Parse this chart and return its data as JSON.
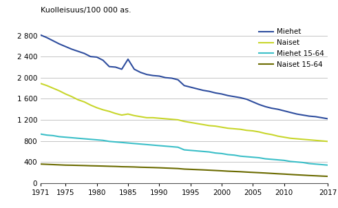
{
  "title": "Kuolleisuus/100 000 as.",
  "ylim": [
    0,
    3000
  ],
  "yticks": [
    0,
    400,
    800,
    1200,
    1600,
    2000,
    2400,
    2800
  ],
  "xticks": [
    1971,
    1975,
    1980,
    1985,
    1990,
    1995,
    2000,
    2005,
    2010,
    2017
  ],
  "series": {
    "Miehet": {
      "color": "#2e4d9e",
      "linewidth": 1.5,
      "data": [
        [
          1971,
          2810
        ],
        [
          1972,
          2760
        ],
        [
          1973,
          2700
        ],
        [
          1974,
          2640
        ],
        [
          1975,
          2590
        ],
        [
          1976,
          2540
        ],
        [
          1977,
          2500
        ],
        [
          1978,
          2460
        ],
        [
          1979,
          2400
        ],
        [
          1980,
          2390
        ],
        [
          1981,
          2330
        ],
        [
          1982,
          2210
        ],
        [
          1983,
          2200
        ],
        [
          1984,
          2160
        ],
        [
          1985,
          2350
        ],
        [
          1986,
          2160
        ],
        [
          1987,
          2100
        ],
        [
          1988,
          2060
        ],
        [
          1989,
          2040
        ],
        [
          1990,
          2030
        ],
        [
          1991,
          2000
        ],
        [
          1992,
          1990
        ],
        [
          1993,
          1960
        ],
        [
          1994,
          1850
        ],
        [
          1995,
          1820
        ],
        [
          1996,
          1790
        ],
        [
          1997,
          1760
        ],
        [
          1998,
          1740
        ],
        [
          1999,
          1710
        ],
        [
          2000,
          1690
        ],
        [
          2001,
          1660
        ],
        [
          2002,
          1640
        ],
        [
          2003,
          1620
        ],
        [
          2004,
          1590
        ],
        [
          2005,
          1540
        ],
        [
          2006,
          1490
        ],
        [
          2007,
          1450
        ],
        [
          2008,
          1420
        ],
        [
          2009,
          1400
        ],
        [
          2010,
          1370
        ],
        [
          2011,
          1340
        ],
        [
          2012,
          1310
        ],
        [
          2013,
          1290
        ],
        [
          2014,
          1270
        ],
        [
          2015,
          1260
        ],
        [
          2016,
          1240
        ],
        [
          2017,
          1220
        ]
      ]
    },
    "Naiset": {
      "color": "#c8d62b",
      "linewidth": 1.5,
      "data": [
        [
          1971,
          1890
        ],
        [
          1972,
          1850
        ],
        [
          1973,
          1800
        ],
        [
          1974,
          1750
        ],
        [
          1975,
          1690
        ],
        [
          1976,
          1640
        ],
        [
          1977,
          1580
        ],
        [
          1978,
          1540
        ],
        [
          1979,
          1480
        ],
        [
          1980,
          1430
        ],
        [
          1981,
          1390
        ],
        [
          1982,
          1360
        ],
        [
          1983,
          1320
        ],
        [
          1984,
          1290
        ],
        [
          1985,
          1310
        ],
        [
          1986,
          1280
        ],
        [
          1987,
          1260
        ],
        [
          1988,
          1240
        ],
        [
          1989,
          1240
        ],
        [
          1990,
          1230
        ],
        [
          1991,
          1220
        ],
        [
          1992,
          1210
        ],
        [
          1993,
          1200
        ],
        [
          1994,
          1170
        ],
        [
          1995,
          1150
        ],
        [
          1996,
          1130
        ],
        [
          1997,
          1110
        ],
        [
          1998,
          1090
        ],
        [
          1999,
          1080
        ],
        [
          2000,
          1060
        ],
        [
          2001,
          1040
        ],
        [
          2002,
          1030
        ],
        [
          2003,
          1020
        ],
        [
          2004,
          1000
        ],
        [
          2005,
          990
        ],
        [
          2006,
          970
        ],
        [
          2007,
          940
        ],
        [
          2008,
          920
        ],
        [
          2009,
          890
        ],
        [
          2010,
          870
        ],
        [
          2011,
          850
        ],
        [
          2012,
          840
        ],
        [
          2013,
          830
        ],
        [
          2014,
          820
        ],
        [
          2015,
          810
        ],
        [
          2016,
          800
        ],
        [
          2017,
          790
        ]
      ]
    },
    "Miehet 15-64": {
      "color": "#3bbfc8",
      "linewidth": 1.5,
      "data": [
        [
          1971,
          930
        ],
        [
          1972,
          910
        ],
        [
          1973,
          900
        ],
        [
          1974,
          880
        ],
        [
          1975,
          870
        ],
        [
          1976,
          860
        ],
        [
          1977,
          850
        ],
        [
          1978,
          840
        ],
        [
          1979,
          830
        ],
        [
          1980,
          820
        ],
        [
          1981,
          810
        ],
        [
          1982,
          790
        ],
        [
          1983,
          780
        ],
        [
          1984,
          770
        ],
        [
          1985,
          760
        ],
        [
          1986,
          750
        ],
        [
          1987,
          740
        ],
        [
          1988,
          730
        ],
        [
          1989,
          720
        ],
        [
          1990,
          710
        ],
        [
          1991,
          700
        ],
        [
          1992,
          690
        ],
        [
          1993,
          680
        ],
        [
          1994,
          630
        ],
        [
          1995,
          620
        ],
        [
          1996,
          610
        ],
        [
          1997,
          600
        ],
        [
          1998,
          590
        ],
        [
          1999,
          570
        ],
        [
          2000,
          560
        ],
        [
          2001,
          540
        ],
        [
          2002,
          530
        ],
        [
          2003,
          510
        ],
        [
          2004,
          500
        ],
        [
          2005,
          490
        ],
        [
          2006,
          480
        ],
        [
          2007,
          460
        ],
        [
          2008,
          450
        ],
        [
          2009,
          440
        ],
        [
          2010,
          430
        ],
        [
          2011,
          410
        ],
        [
          2012,
          400
        ],
        [
          2013,
          390
        ],
        [
          2014,
          370
        ],
        [
          2015,
          360
        ],
        [
          2016,
          350
        ],
        [
          2017,
          340
        ]
      ]
    },
    "Naiset 15-64": {
      "color": "#6b6b00",
      "linewidth": 1.5,
      "data": [
        [
          1971,
          360
        ],
        [
          1972,
          355
        ],
        [
          1973,
          350
        ],
        [
          1974,
          345
        ],
        [
          1975,
          340
        ],
        [
          1976,
          338
        ],
        [
          1977,
          335
        ],
        [
          1978,
          332
        ],
        [
          1979,
          328
        ],
        [
          1980,
          325
        ],
        [
          1981,
          322
        ],
        [
          1982,
          318
        ],
        [
          1983,
          315
        ],
        [
          1984,
          310
        ],
        [
          1985,
          308
        ],
        [
          1986,
          305
        ],
        [
          1987,
          300
        ],
        [
          1988,
          297
        ],
        [
          1989,
          294
        ],
        [
          1990,
          290
        ],
        [
          1991,
          285
        ],
        [
          1992,
          280
        ],
        [
          1993,
          275
        ],
        [
          1994,
          265
        ],
        [
          1995,
          260
        ],
        [
          1996,
          255
        ],
        [
          1997,
          250
        ],
        [
          1998,
          244
        ],
        [
          1999,
          238
        ],
        [
          2000,
          232
        ],
        [
          2001,
          225
        ],
        [
          2002,
          220
        ],
        [
          2003,
          215
        ],
        [
          2004,
          208
        ],
        [
          2005,
          202
        ],
        [
          2006,
          196
        ],
        [
          2007,
          190
        ],
        [
          2008,
          183
        ],
        [
          2009,
          176
        ],
        [
          2010,
          170
        ],
        [
          2011,
          163
        ],
        [
          2012,
          156
        ],
        [
          2013,
          150
        ],
        [
          2014,
          143
        ],
        [
          2015,
          138
        ],
        [
          2016,
          132
        ],
        [
          2017,
          127
        ]
      ]
    }
  },
  "legend_order": [
    "Miehet",
    "Naiset",
    "Miehet 15-64",
    "Naiset 15-64"
  ],
  "background_color": "#ffffff",
  "grid_color": "#bbbbbb"
}
